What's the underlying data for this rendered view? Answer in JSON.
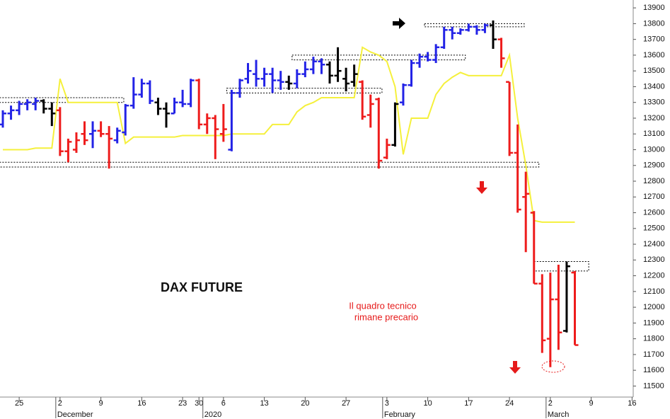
{
  "chart_data": {
    "type": "ohlc",
    "annotations": {
      "title": "DAX FUTURE",
      "note": [
        "Il quadro tecnico",
        "rimane precario"
      ]
    },
    "categories": [
      null,
      null,
      "25",
      null,
      null,
      null,
      null,
      "2",
      null,
      null,
      null,
      null,
      "9",
      null,
      null,
      null,
      null,
      "16",
      null,
      null,
      null,
      null,
      "23",
      null,
      "30",
      null,
      null,
      "6",
      null,
      null,
      null,
      null,
      "13",
      null,
      null,
      null,
      null,
      "20",
      null,
      null,
      null,
      null,
      "27",
      null,
      null,
      null,
      null,
      "3",
      null,
      null,
      null,
      null,
      "10",
      null,
      null,
      null,
      null,
      "17",
      null,
      null,
      null,
      null,
      "24",
      null,
      null,
      null,
      null,
      "2",
      null,
      null,
      null,
      null,
      "9",
      null,
      null,
      null,
      null,
      "16"
    ],
    "month_labels": [
      null,
      null,
      null,
      null,
      null,
      null,
      null,
      "December",
      null,
      null,
      null,
      null,
      null,
      null,
      null,
      null,
      null,
      null,
      null,
      null,
      null,
      null,
      null,
      null,
      null,
      "2020",
      null,
      null,
      null,
      null,
      null,
      null,
      null,
      null,
      null,
      null,
      null,
      null,
      null,
      null,
      null,
      null,
      null,
      null,
      null,
      null,
      null,
      "February",
      null,
      null,
      null,
      null,
      null,
      null,
      null,
      null,
      null,
      null,
      null,
      null,
      null,
      null,
      null,
      null,
      null,
      null,
      null,
      "March",
      null,
      null,
      null,
      null,
      null,
      null,
      null,
      null,
      null,
      null
    ],
    "open": [
      13160,
      13230,
      13250,
      13290,
      13290,
      13310,
      13260,
      13250,
      12990,
      13000,
      13100,
      13100,
      13120,
      13100,
      13060,
      13110,
      13280,
      13350,
      13420,
      13300,
      13260,
      13230,
      13300,
      13290,
      13440,
      13160,
      13200,
      13100,
      13000,
      13360,
      13450,
      13480,
      13450,
      13480,
      13440,
      13430,
      13420,
      13480,
      13510,
      13560,
      13540,
      13470,
      13450,
      13430,
      13430,
      13220,
      13320,
      12950,
      13030,
      13300,
      13410,
      13550,
      13590,
      13570,
      13650,
      13760,
      13740,
      13760,
      13780,
      13760,
      13790,
      13700,
      13430,
      12980,
      12700,
      12600,
      12150,
      11800,
      12050,
      11850,
      12220,
      null,
      null,
      null,
      null,
      null,
      null,
      null
    ],
    "high": [
      13250,
      13280,
      13310,
      13320,
      13330,
      13320,
      13300,
      13270,
      13070,
      13110,
      13180,
      13180,
      13180,
      13150,
      13140,
      13290,
      13460,
      13450,
      13440,
      13330,
      13300,
      13330,
      13380,
      13450,
      13450,
      13230,
      13220,
      13290,
      13380,
      13450,
      13550,
      13570,
      13520,
      13520,
      13500,
      13470,
      13510,
      13560,
      13590,
      13580,
      13560,
      13650,
      13520,
      13540,
      13440,
      13350,
      13330,
      13070,
      13300,
      13420,
      13570,
      13610,
      13620,
      13670,
      13780,
      13780,
      13770,
      13800,
      13790,
      13800,
      13820,
      13710,
      13430,
      13160,
      12860,
      12610,
      12210,
      12220,
      12270,
      12290,
      12230,
      null,
      null,
      null,
      null,
      null,
      null,
      null
    ],
    "low": [
      13140,
      13190,
      13220,
      13250,
      13250,
      13230,
      13150,
      12960,
      12920,
      12980,
      13030,
      13010,
      13080,
      12880,
      13040,
      13090,
      13260,
      13330,
      13290,
      13220,
      13140,
      13230,
      13270,
      13270,
      13130,
      13100,
      12940,
      13050,
      12990,
      13330,
      13420,
      13400,
      13400,
      13360,
      13380,
      13380,
      13390,
      13460,
      13480,
      13480,
      13420,
      13430,
      13370,
      13400,
      13190,
      13140,
      12880,
      12940,
      13020,
      13280,
      13400,
      13520,
      13560,
      13550,
      13640,
      13700,
      13730,
      13750,
      13730,
      13740,
      13640,
      13520,
      12960,
      12600,
      12350,
      12150,
      11710,
      11620,
      11730,
      11840,
      11760,
      null,
      null,
      null,
      null,
      null,
      null,
      null
    ],
    "close": [
      13230,
      13250,
      13290,
      13300,
      13310,
      13260,
      13230,
      12990,
      13050,
      13060,
      13060,
      13120,
      13100,
      13070,
      13120,
      13280,
      13350,
      13420,
      13310,
      13260,
      13230,
      13300,
      13290,
      13440,
      13160,
      13200,
      13130,
      13130,
      13360,
      13440,
      13500,
      13450,
      13480,
      13440,
      13430,
      13420,
      13480,
      13510,
      13560,
      13540,
      13470,
      13500,
      13420,
      13480,
      13210,
      13290,
      12930,
      13030,
      13290,
      13410,
      13550,
      13590,
      13570,
      13650,
      13760,
      13740,
      13760,
      13780,
      13760,
      13790,
      13700,
      13580,
      12980,
      12620,
      12720,
      12150,
      11790,
      12050,
      11840,
      12260,
      11760,
      null,
      null,
      null,
      null,
      null,
      null,
      null
    ],
    "bar_colors": [
      "#2323e6",
      "#2323e6",
      "#2323e6",
      "#2323e6",
      "#2323e6",
      "#000000",
      "#000000",
      "#ee1c1c",
      "#ee1c1c",
      "#ee1c1c",
      "#ee1c1c",
      "#2323e6",
      "#ee1c1c",
      "#ee1c1c",
      "#2323e6",
      "#2323e6",
      "#2323e6",
      "#2323e6",
      "#2323e6",
      "#000000",
      "#000000",
      "#2323e6",
      "#2323e6",
      "#2323e6",
      "#ee1c1c",
      "#ee1c1c",
      "#ee1c1c",
      "#ee1c1c",
      "#2323e6",
      "#2323e6",
      "#2323e6",
      "#2323e6",
      "#2323e6",
      "#2323e6",
      "#2323e6",
      "#000000",
      "#2323e6",
      "#2323e6",
      "#2323e6",
      "#2323e6",
      "#000000",
      "#000000",
      "#000000",
      "#000000",
      "#ee1c1c",
      "#ee1c1c",
      "#ee1c1c",
      "#ee1c1c",
      "#000000",
      "#2323e6",
      "#2323e6",
      "#2323e6",
      "#2323e6",
      "#2323e6",
      "#2323e6",
      "#2323e6",
      "#2323e6",
      "#2323e6",
      "#2323e6",
      "#2323e6",
      "#000000",
      "#ee1c1c",
      "#ee1c1c",
      "#ee1c1c",
      "#ee1c1c",
      "#ee1c1c",
      "#ee1c1c",
      "#ee1c1c",
      "#ee1c1c",
      "#000000",
      "#ee1c1c",
      null,
      null,
      null,
      null,
      null,
      null,
      null
    ],
    "line": {
      "color": "#f5f03c",
      "values": [
        13000,
        13000,
        13000,
        13000,
        13010,
        13010,
        13010,
        13450,
        13300,
        13300,
        13300,
        13300,
        13300,
        13300,
        13300,
        13040,
        13080,
        13080,
        13080,
        13080,
        13080,
        13080,
        13090,
        13090,
        13090,
        13090,
        13090,
        13090,
        13100,
        13100,
        13100,
        13100,
        13100,
        13160,
        13160,
        13160,
        13240,
        13280,
        13300,
        13330,
        13330,
        13330,
        13330,
        13330,
        13650,
        13620,
        13600,
        13560,
        13400,
        12970,
        13200,
        13200,
        13200,
        13350,
        13420,
        13460,
        13490,
        13470,
        13470,
        13470,
        13470,
        13470,
        13600,
        13200,
        12900,
        12550,
        12540,
        12540,
        12540,
        12540,
        12540,
        null,
        null,
        null,
        null,
        null,
        null,
        null
      ]
    },
    "zones": [
      {
        "x_range": [
          -0.4,
          14.8
        ],
        "y": [
          13300,
          13330
        ]
      },
      {
        "x_range": [
          -0.4,
          65.6
        ],
        "y": [
          12890,
          12920
        ]
      },
      {
        "x_range": [
          27.4,
          46.4
        ],
        "y": [
          13360,
          13390
        ]
      },
      {
        "x_range": [
          35.4,
          56.6
        ],
        "y": [
          13570,
          13600
        ]
      },
      {
        "x_range": [
          51.6,
          63.8
        ],
        "y": [
          13780,
          13800
        ]
      },
      {
        "x_range": [
          65.0,
          71.7
        ],
        "y": [
          12230,
          12290
        ]
      }
    ],
    "ylim": [
      11430,
      13950
    ],
    "yticks": [
      11500,
      11600,
      11700,
      11800,
      11900,
      12000,
      12100,
      12200,
      12300,
      12400,
      12500,
      12600,
      12700,
      12800,
      12900,
      13000,
      13100,
      13200,
      13300,
      13400,
      13500,
      13600,
      13700,
      13800,
      13900
    ]
  }
}
